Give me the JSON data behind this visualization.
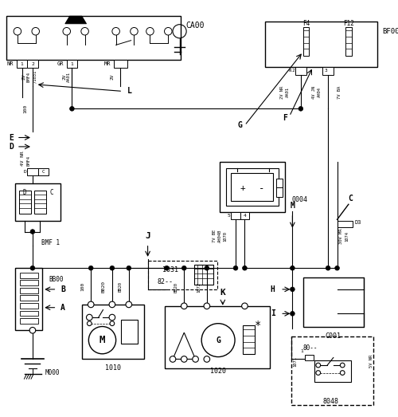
{
  "figsize": [
    5.0,
    5.23
  ],
  "dpi": 100,
  "xlim": [
    0,
    500
  ],
  "ylim": [
    0,
    523
  ],
  "bg": "white",
  "lc": "black",
  "lw": 0.8,
  "fs_small": 5,
  "fs_med": 6,
  "fs_large": 7
}
